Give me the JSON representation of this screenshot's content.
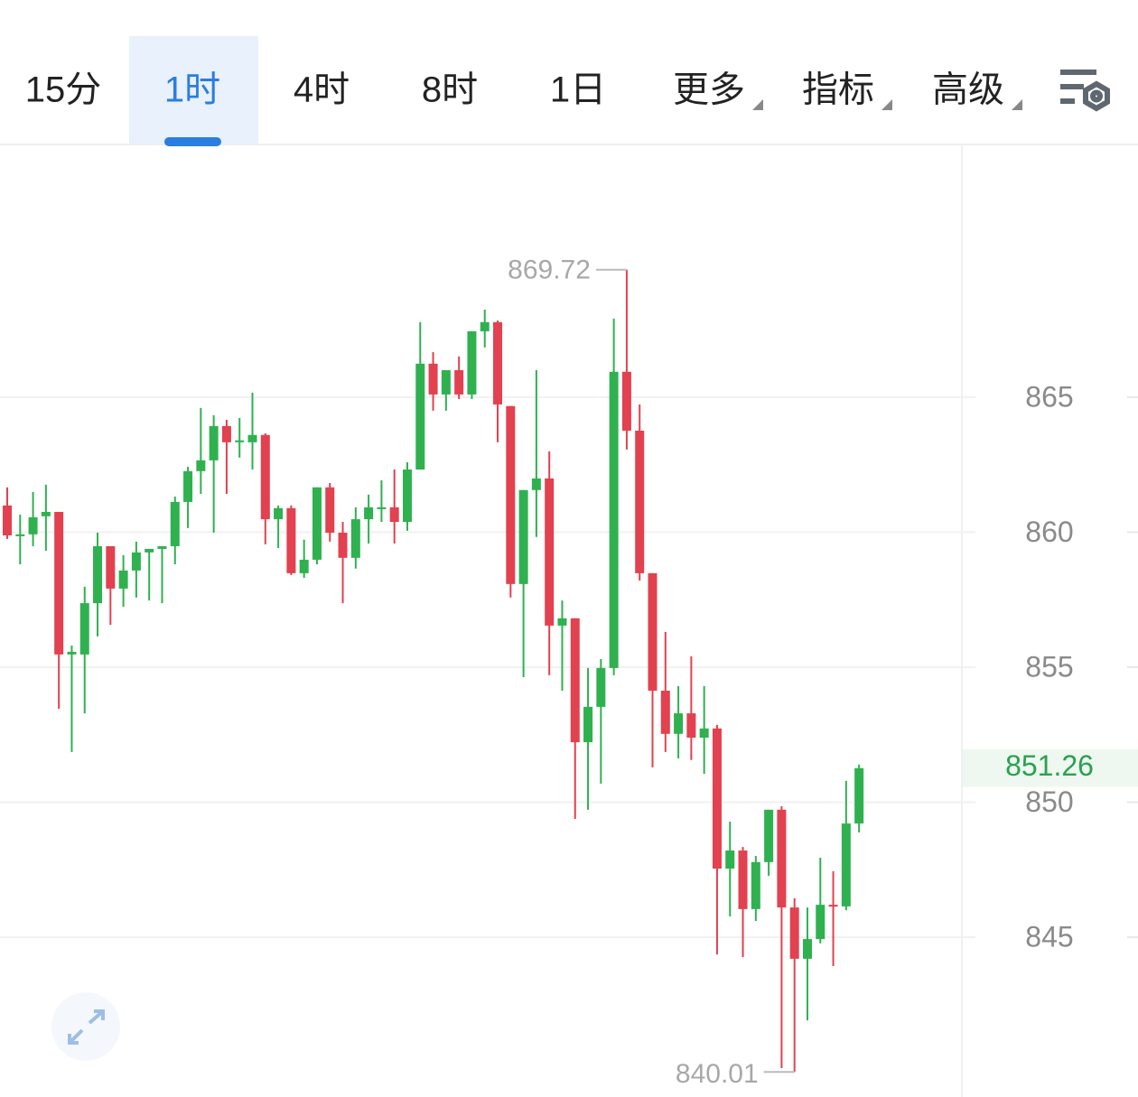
{
  "tabs": [
    {
      "label": "15分"
    },
    {
      "label": "1时"
    },
    {
      "label": "4时"
    },
    {
      "label": "8时"
    },
    {
      "label": "1日"
    },
    {
      "label": "更多",
      "dropdown": true
    },
    {
      "label": "指标",
      "dropdown": true
    },
    {
      "label": "高级",
      "dropdown": true
    }
  ],
  "active_tab": 1,
  "chart_data": {
    "type": "candlestick",
    "up_color": "#2fb150",
    "down_color": "#e2414f",
    "grid": true,
    "ylim": [
      839.08,
      874.36
    ],
    "yticks": [
      845,
      850,
      855,
      860,
      865
    ],
    "open": [
      860.99,
      859.85,
      859.92,
      860.59,
      860.75,
      855.47,
      855.47,
      857.37,
      859.48,
      857.91,
      858.58,
      859.25,
      859.38,
      859.48,
      861.12,
      862.26,
      862.66,
      863.93,
      863.33,
      863.33,
      863.6,
      860.48,
      860.89,
      858.48,
      858.98,
      861.66,
      859.98,
      859.05,
      860.48,
      860.89,
      860.92,
      860.38,
      862.32,
      866.24,
      865.1,
      866.0,
      865.1,
      867.44,
      867.78,
      864.67,
      858.08,
      861.56,
      861.99,
      856.54,
      856.81,
      852.22,
      853.53,
      854.97,
      865.94,
      863.76,
      858.48,
      854.13,
      852.53,
      853.29,
      852.39,
      852.73,
      847.54,
      848.21,
      846.04,
      847.78,
      849.72,
      846.1,
      844.2,
      844.93,
      846.2,
      846.14,
      849.21
    ],
    "high": [
      861.66,
      860.65,
      861.49,
      861.76,
      860.75,
      855.8,
      857.98,
      859.98,
      859.48,
      859.15,
      859.65,
      859.38,
      859.48,
      861.32,
      862.42,
      864.6,
      864.33,
      864.16,
      864.23,
      865.17,
      863.66,
      860.99,
      860.99,
      859.72,
      861.66,
      861.82,
      860.38,
      860.92,
      861.39,
      861.92,
      862.32,
      862.59,
      867.78,
      866.67,
      866.0,
      866.51,
      867.44,
      868.24,
      867.84,
      864.67,
      861.56,
      866.0,
      862.99,
      857.47,
      856.81,
      854.97,
      855.3,
      867.91,
      869.72,
      864.73,
      858.48,
      856.3,
      854.3,
      855.4,
      854.3,
      852.86,
      849.28,
      848.34,
      848.01,
      849.72,
      849.85,
      846.44,
      846.1,
      847.94,
      847.44,
      850.79,
      851.39
    ],
    "low": [
      859.75,
      858.81,
      859.48,
      859.31,
      853.46,
      851.86,
      853.29,
      856.14,
      856.57,
      857.24,
      857.58,
      857.47,
      857.37,
      858.81,
      860.15,
      861.42,
      859.98,
      861.42,
      862.76,
      862.32,
      859.55,
      859.41,
      858.41,
      858.31,
      858.81,
      859.65,
      857.37,
      858.65,
      859.58,
      860.38,
      859.58,
      860.05,
      862.32,
      864.5,
      864.5,
      864.93,
      864.93,
      866.84,
      863.33,
      857.58,
      854.63,
      859.82,
      854.7,
      854.13,
      849.38,
      849.72,
      850.69,
      854.7,
      863.06,
      858.21,
      851.29,
      851.86,
      851.62,
      851.56,
      851.05,
      844.36,
      845.77,
      844.26,
      845.6,
      847.27,
      840.15,
      840.01,
      841.92,
      844.77,
      843.93,
      846.0,
      848.88
    ],
    "close": [
      859.88,
      859.92,
      860.55,
      860.75,
      855.47,
      855.57,
      857.37,
      859.48,
      857.91,
      858.58,
      859.25,
      859.38,
      859.48,
      861.12,
      862.26,
      862.66,
      863.93,
      863.33,
      863.4,
      863.6,
      860.48,
      860.89,
      858.48,
      858.98,
      861.66,
      859.98,
      859.05,
      860.48,
      860.92,
      860.92,
      860.38,
      862.32,
      866.24,
      865.1,
      866.0,
      865.1,
      867.44,
      867.78,
      864.73,
      858.08,
      861.56,
      861.99,
      856.54,
      856.81,
      852.22,
      853.53,
      854.97,
      865.94,
      863.76,
      858.48,
      854.13,
      852.53,
      853.29,
      852.39,
      852.73,
      847.54,
      848.21,
      846.04,
      847.78,
      849.72,
      846.1,
      844.2,
      844.93,
      846.2,
      846.14,
      849.21,
      851.26
    ],
    "high_label": 869.72,
    "low_label": 840.01,
    "current_price": 851.26
  }
}
